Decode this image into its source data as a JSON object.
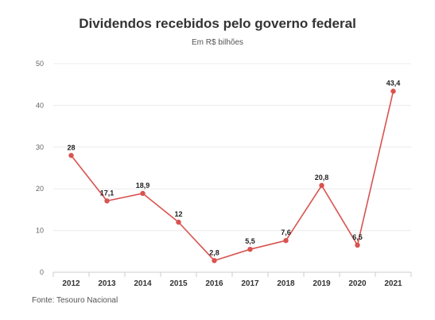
{
  "chart_data": {
    "type": "line",
    "title": "Dividendos recebidos pelo governo federal",
    "subtitle": "Em R$ bilhões",
    "source": "Fonte: Tesouro Nacional",
    "x": [
      "2012",
      "2013",
      "2014",
      "2015",
      "2016",
      "2017",
      "2018",
      "2019",
      "2020",
      "2021"
    ],
    "values": [
      28,
      17.1,
      18.9,
      12,
      2.8,
      5.5,
      7.6,
      20.8,
      6.5,
      43.4
    ],
    "data_labels": [
      "28",
      "17,1",
      "18,9",
      "12",
      "2,8",
      "5,5",
      "7,6",
      "20,8",
      "6,5",
      "43,4"
    ],
    "ylim": [
      0,
      50
    ],
    "yticks": [
      0,
      10,
      20,
      30,
      40,
      50
    ],
    "grid": true,
    "legend": "none",
    "line_color": "#d9534f",
    "grid_color": "#ececec"
  }
}
